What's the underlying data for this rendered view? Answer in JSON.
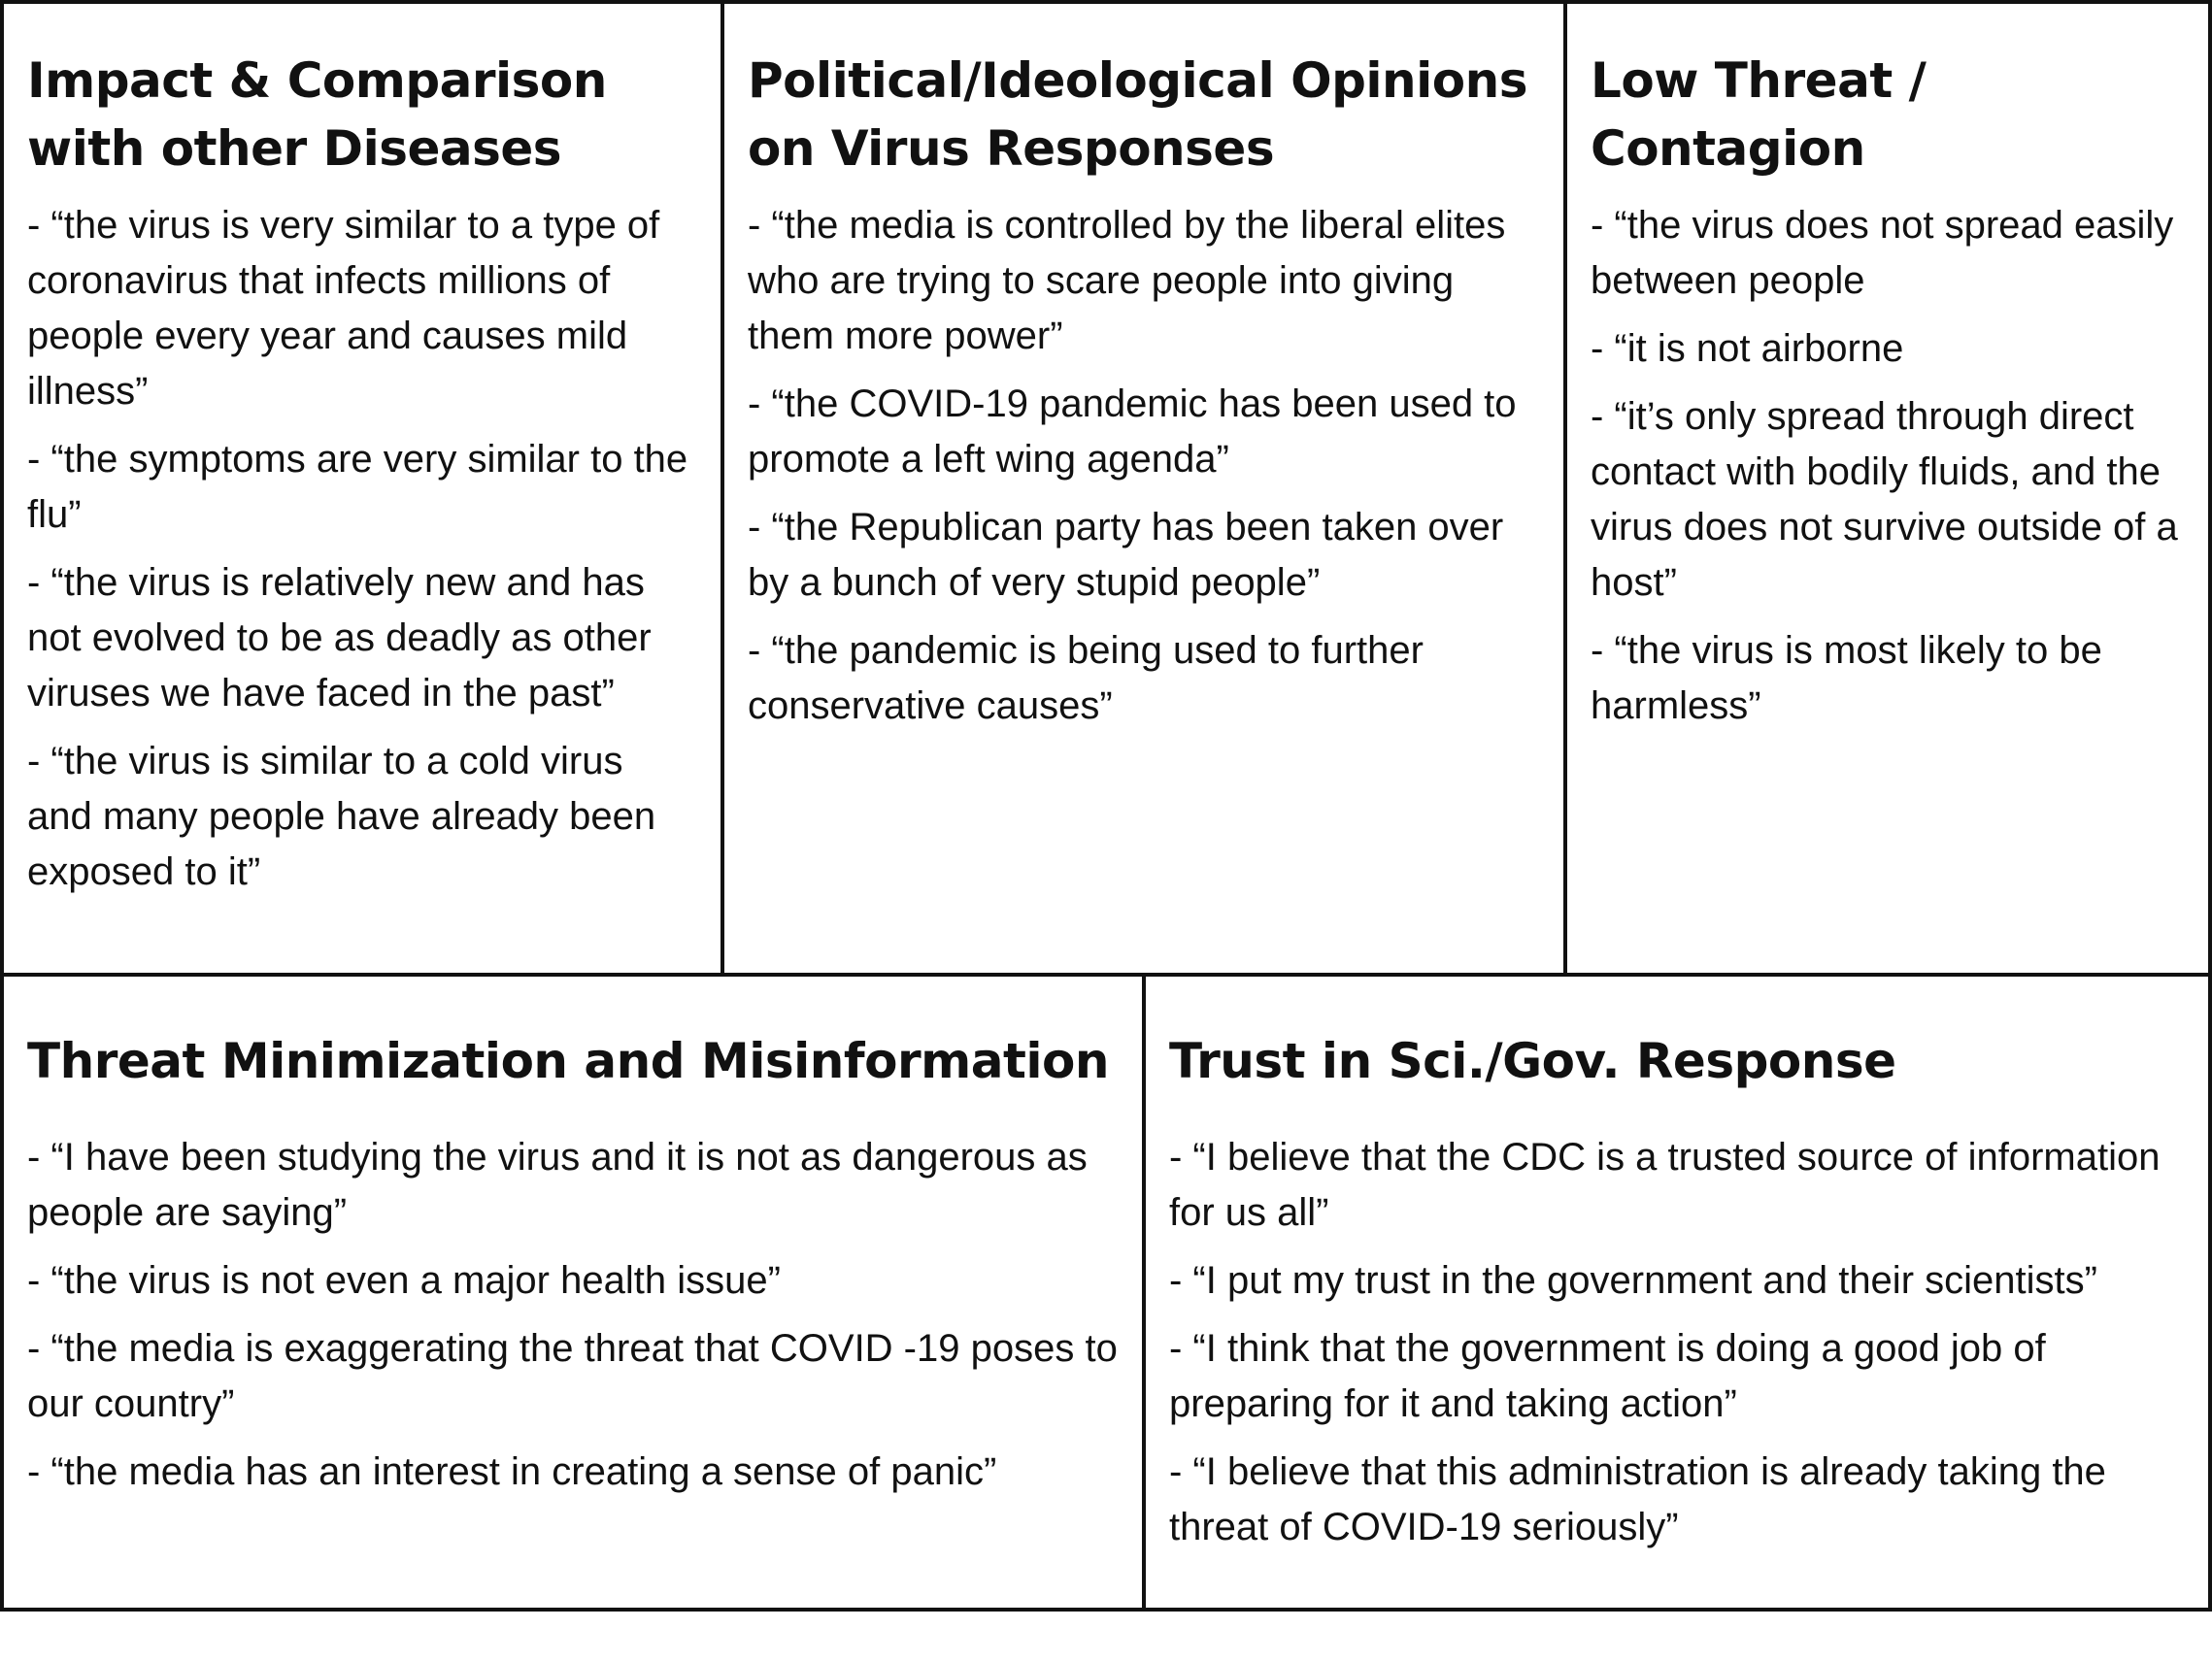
{
  "categories": [
    {
      "title": "Impact & Comparison with other Diseases",
      "items": [
        "- “the virus is very similar to a type of coronavirus that infects millions of people every year and causes mild illness”",
        "- “the symptoms are very similar to the flu”",
        "- “the virus is relatively new and has not evolved to be as deadly as other viruses we have faced in the past”",
        "- “the virus is similar to a cold virus and many people have already been exposed to it”"
      ]
    },
    {
      "title": "Political/Ideological Opinions on Virus Responses",
      "items": [
        "- “the media is controlled by the liberal elites who are trying to scare people into giving them more power”",
        "- “the COVID-19 pandemic has been used to promote a left wing agenda”",
        "- “the Republican party has been taken over by a bunch of very stupid people”",
        "- “the pandemic is being used to further conservative causes”"
      ]
    },
    {
      "title": "Low Threat / Contagion",
      "items": [
        "- “the virus does not spread easily between people",
        "- “it is not airborne",
        "- “it’s only spread through direct contact with bodily fluids, and the virus does not survive outside of a host”",
        "- “the virus is most likely to be harmless”"
      ]
    },
    {
      "title": "Threat Minimization and Misinformation",
      "items": [
        "- “I have been studying the virus and it is not as dangerous as people are saying”",
        "- “the virus is not even a major health issue”",
        "- “the media is exaggerating the threat that COVID -19 poses to our country”",
        "- “the media has an interest in creating a sense of panic”"
      ]
    },
    {
      "title": "Trust in Sci./Gov. Response",
      "items": [
        "- “I believe that the CDC is a trusted source of information for us all”",
        "- “I put my trust in the government and their scientists”",
        "- “I think that the government is doing a good job of preparing for it and taking action”",
        "- “I believe that this administration is already taking the threat of COVID-19 seriously”"
      ]
    }
  ]
}
